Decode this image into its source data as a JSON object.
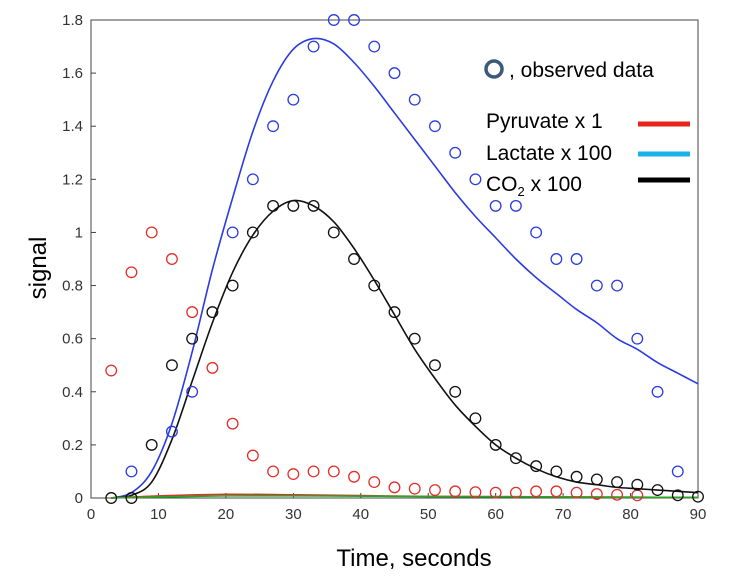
{
  "chart_data": {
    "type": "scatter",
    "title": "",
    "xlabel": "Time, seconds",
    "ylabel": "signal",
    "xlim": [
      0,
      90
    ],
    "ylim": [
      0,
      1.8
    ],
    "xticks": [
      "0",
      "10",
      "20",
      "30",
      "40",
      "50",
      "60",
      "70",
      "80",
      "90"
    ],
    "yticks": [
      "0",
      "0.2",
      "0.4",
      "0.6",
      "0.8",
      "1",
      "1.2",
      "1.4",
      "1.6",
      "1.8"
    ],
    "x": [
      3,
      6,
      9,
      12,
      15,
      18,
      21,
      24,
      27,
      30,
      33,
      36,
      39,
      42,
      45,
      48,
      51,
      54,
      57,
      60,
      63,
      66,
      69,
      72,
      75,
      78,
      81,
      84,
      87,
      90
    ],
    "observed": [
      {
        "name": "Pyruvate",
        "color": "#e0302a",
        "values": [
          0.48,
          0.85,
          1.0,
          0.9,
          0.7,
          0.49,
          0.28,
          0.16,
          0.1,
          0.09,
          0.1,
          0.1,
          0.08,
          0.06,
          0.04,
          0.035,
          0.03,
          0.025,
          0.022,
          0.02,
          0.02,
          0.025,
          0.025,
          0.02,
          0.015,
          0.012,
          0.01,
          null,
          null,
          null
        ]
      },
      {
        "name": "Lactate x 100",
        "color": "#2a3be0",
        "values": [
          null,
          0.1,
          null,
          0.25,
          0.4,
          null,
          1.0,
          1.2,
          1.4,
          1.5,
          1.7,
          1.8,
          1.8,
          1.7,
          1.6,
          1.5,
          1.4,
          1.3,
          1.2,
          1.1,
          1.1,
          1.0,
          0.9,
          0.9,
          0.8,
          0.8,
          0.6,
          0.4,
          0.1,
          null
        ]
      },
      {
        "name": "CO2 x 100",
        "color": "#111111",
        "values": [
          0,
          0,
          0.2,
          0.5,
          0.6,
          0.7,
          0.8,
          1.0,
          1.1,
          1.1,
          1.1,
          1.0,
          0.9,
          0.8,
          0.7,
          0.6,
          0.5,
          0.4,
          0.3,
          0.2,
          0.15,
          0.12,
          0.1,
          0.08,
          0.07,
          0.06,
          0.05,
          0.03,
          0.01,
          0.005
        ]
      }
    ],
    "fits": [
      {
        "name": "Lactate fit",
        "color": "#2a3be0",
        "x": [
          3,
          6,
          9,
          12,
          15,
          18,
          21,
          24,
          27,
          30,
          33,
          36,
          39,
          42,
          45,
          48,
          51,
          54,
          57,
          60,
          63,
          66,
          69,
          72,
          75,
          78,
          81,
          84,
          87,
          90
        ],
        "values": [
          0,
          0.02,
          0.1,
          0.28,
          0.55,
          0.86,
          1.13,
          1.38,
          1.57,
          1.69,
          1.73,
          1.71,
          1.64,
          1.55,
          1.45,
          1.35,
          1.25,
          1.15,
          1.06,
          0.98,
          0.9,
          0.83,
          0.77,
          0.71,
          0.66,
          0.6,
          0.56,
          0.51,
          0.47,
          0.43
        ]
      },
      {
        "name": "CO2 fit",
        "color": "#111111",
        "x": [
          3,
          6,
          9,
          12,
          15,
          18,
          21,
          24,
          27,
          30,
          33,
          36,
          39,
          42,
          45,
          48,
          51,
          54,
          57,
          60,
          63,
          66,
          69,
          72,
          75,
          78,
          81,
          84,
          87,
          90
        ],
        "values": [
          0,
          0.01,
          0.06,
          0.22,
          0.44,
          0.66,
          0.85,
          0.99,
          1.08,
          1.12,
          1.1,
          1.04,
          0.94,
          0.82,
          0.69,
          0.56,
          0.45,
          0.35,
          0.27,
          0.2,
          0.15,
          0.11,
          0.08,
          0.06,
          0.05,
          0.04,
          0.035,
          0.03,
          0.025,
          0.02
        ]
      },
      {
        "name": "Pyruvate fit",
        "color": "#e0302a",
        "x": [
          3,
          10,
          20,
          30,
          40,
          50,
          60,
          70,
          80,
          90
        ],
        "values": [
          0,
          0.008,
          0.014,
          0.012,
          0.009,
          0.006,
          0.005,
          0.004,
          0.003,
          0.002
        ]
      },
      {
        "name": "Lactate component fit",
        "color": "#22aa22",
        "x": [
          3,
          10,
          20,
          30,
          40,
          50,
          60,
          70,
          80,
          90
        ],
        "values": [
          0,
          0.004,
          0.008,
          0.008,
          0.007,
          0.006,
          0.005,
          0.004,
          0.003,
          0.002
        ]
      }
    ],
    "legend": {
      "placement": "top-right",
      "marker_label": ", observed data",
      "marker_color": "#3a5a78",
      "entries": [
        {
          "label": "Pyruvate x 1",
          "color": "#e8241c"
        },
        {
          "label": "Lactate x 100",
          "color": "#1ab0e8"
        },
        {
          "label_main": "CO",
          "label_sub": "2",
          "label_rest": " x 100",
          "color": "#000000"
        }
      ]
    }
  }
}
